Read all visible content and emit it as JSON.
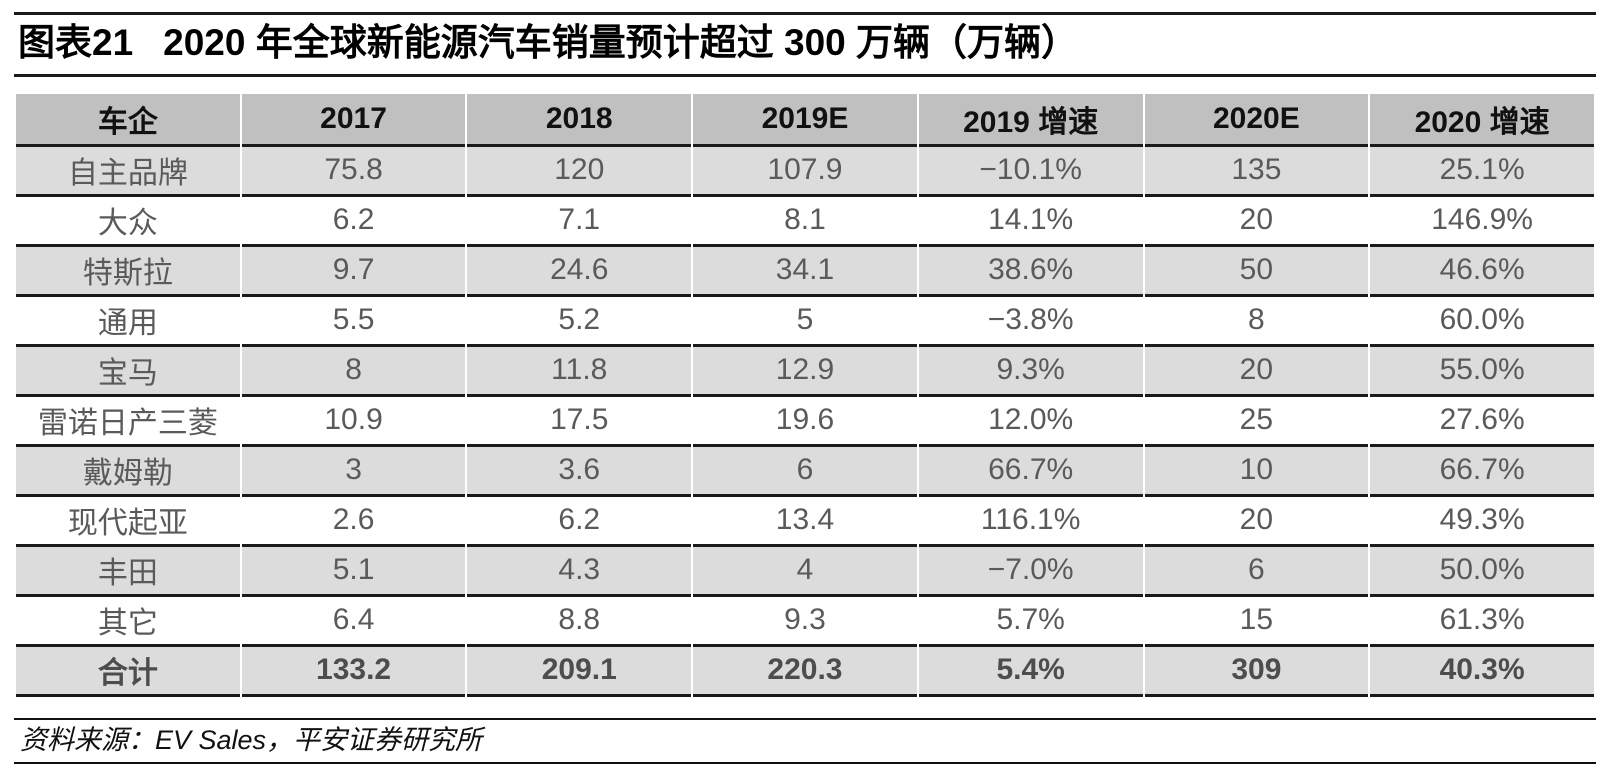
{
  "page": {
    "title_label": "图表21",
    "title_text": "2020 年全球新能源汽车销量预计超过 300 万辆（万辆）",
    "source_note": "资料来源：EV Sales，平安证券研究所"
  },
  "colors": {
    "header_bg": "#c0c0c0",
    "stripe_bg": "#dcdcdc",
    "row_bg": "#ffffff",
    "rule": "#1a1a1a",
    "body_text": "#5a5a5a",
    "header_text": "#111111"
  },
  "table": {
    "columns": [
      "车企",
      "2017",
      "2018",
      "2019E",
      "2019 增速",
      "2020E",
      "2020 增速"
    ],
    "rows": [
      [
        "自主品牌",
        "75.8",
        "120",
        "107.9",
        "−10.1%",
        "135",
        "25.1%"
      ],
      [
        "大众",
        "6.2",
        "7.1",
        "8.1",
        "14.1%",
        "20",
        "146.9%"
      ],
      [
        "特斯拉",
        "9.7",
        "24.6",
        "34.1",
        "38.6%",
        "50",
        "46.6%"
      ],
      [
        "通用",
        "5.5",
        "5.2",
        "5",
        "−3.8%",
        "8",
        "60.0%"
      ],
      [
        "宝马",
        "8",
        "11.8",
        "12.9",
        "9.3%",
        "20",
        "55.0%"
      ],
      [
        "雷诺日产三菱",
        "10.9",
        "17.5",
        "19.6",
        "12.0%",
        "25",
        "27.6%"
      ],
      [
        "戴姆勒",
        "3",
        "3.6",
        "6",
        "66.7%",
        "10",
        "66.7%"
      ],
      [
        "现代起亚",
        "2.6",
        "6.2",
        "13.4",
        "116.1%",
        "20",
        "49.3%"
      ],
      [
        "丰田",
        "5.1",
        "4.3",
        "4",
        "−7.0%",
        "6",
        "50.0%"
      ],
      [
        "其它",
        "6.4",
        "8.8",
        "9.3",
        "5.7%",
        "15",
        "61.3%"
      ],
      [
        "合计",
        "133.2",
        "209.1",
        "220.3",
        "5.4%",
        "309",
        "40.3%"
      ]
    ]
  }
}
